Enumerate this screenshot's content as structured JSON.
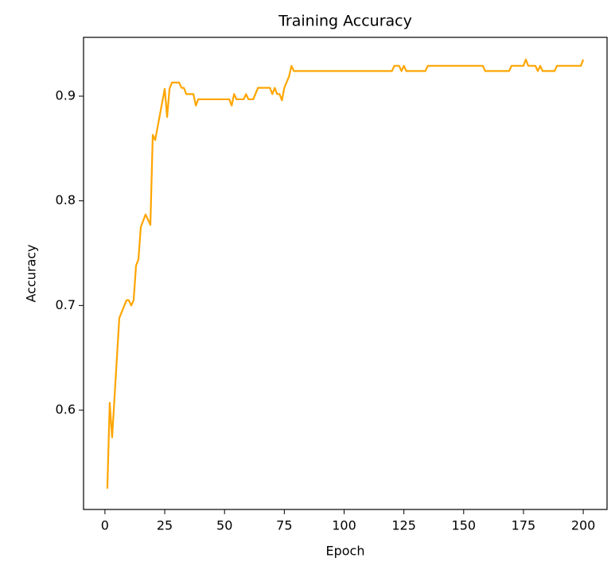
{
  "chart_data": {
    "type": "line",
    "title": "Training Accuracy",
    "x_label": "Epoch",
    "y_label": "Accuracy",
    "x": [
      1,
      2,
      3,
      6,
      9,
      10,
      11,
      12,
      13,
      14,
      15,
      17,
      19,
      20,
      21,
      25,
      26,
      27,
      28,
      31,
      32,
      33,
      34,
      37,
      38,
      39,
      52,
      53,
      54,
      55,
      58,
      59,
      60,
      62,
      64,
      69,
      70,
      71,
      72,
      73,
      74,
      75,
      77,
      78,
      79,
      120,
      121,
      123,
      124,
      125,
      126,
      134,
      135,
      158,
      159,
      169,
      170,
      175,
      176,
      177,
      180,
      181,
      182,
      183,
      188,
      189,
      199,
      200
    ],
    "series": [
      {
        "name": "Accuracy",
        "color": "#ffa500",
        "values": [
          0.525,
          0.607,
          0.574,
          0.688,
          0.705,
          0.705,
          0.7,
          0.705,
          0.738,
          0.744,
          0.775,
          0.787,
          0.777,
          0.863,
          0.858,
          0.907,
          0.88,
          0.907,
          0.913,
          0.913,
          0.908,
          0.908,
          0.902,
          0.902,
          0.891,
          0.897,
          0.897,
          0.891,
          0.902,
          0.897,
          0.897,
          0.902,
          0.897,
          0.897,
          0.908,
          0.908,
          0.902,
          0.908,
          0.902,
          0.902,
          0.896,
          0.908,
          0.919,
          0.929,
          0.924,
          0.924,
          0.929,
          0.929,
          0.924,
          0.929,
          0.924,
          0.924,
          0.929,
          0.929,
          0.924,
          0.924,
          0.929,
          0.929,
          0.935,
          0.929,
          0.929,
          0.924,
          0.929,
          0.924,
          0.924,
          0.929,
          0.929,
          0.935
        ]
      }
    ],
    "xlim": [
      -8.95,
      209.95
    ],
    "ylim": [
      0.5051,
      0.9562
    ],
    "xticks": [
      0,
      25,
      50,
      75,
      100,
      125,
      150,
      175,
      200
    ],
    "yticks": [
      0.6,
      0.7,
      0.8,
      0.9
    ],
    "grid": false
  }
}
